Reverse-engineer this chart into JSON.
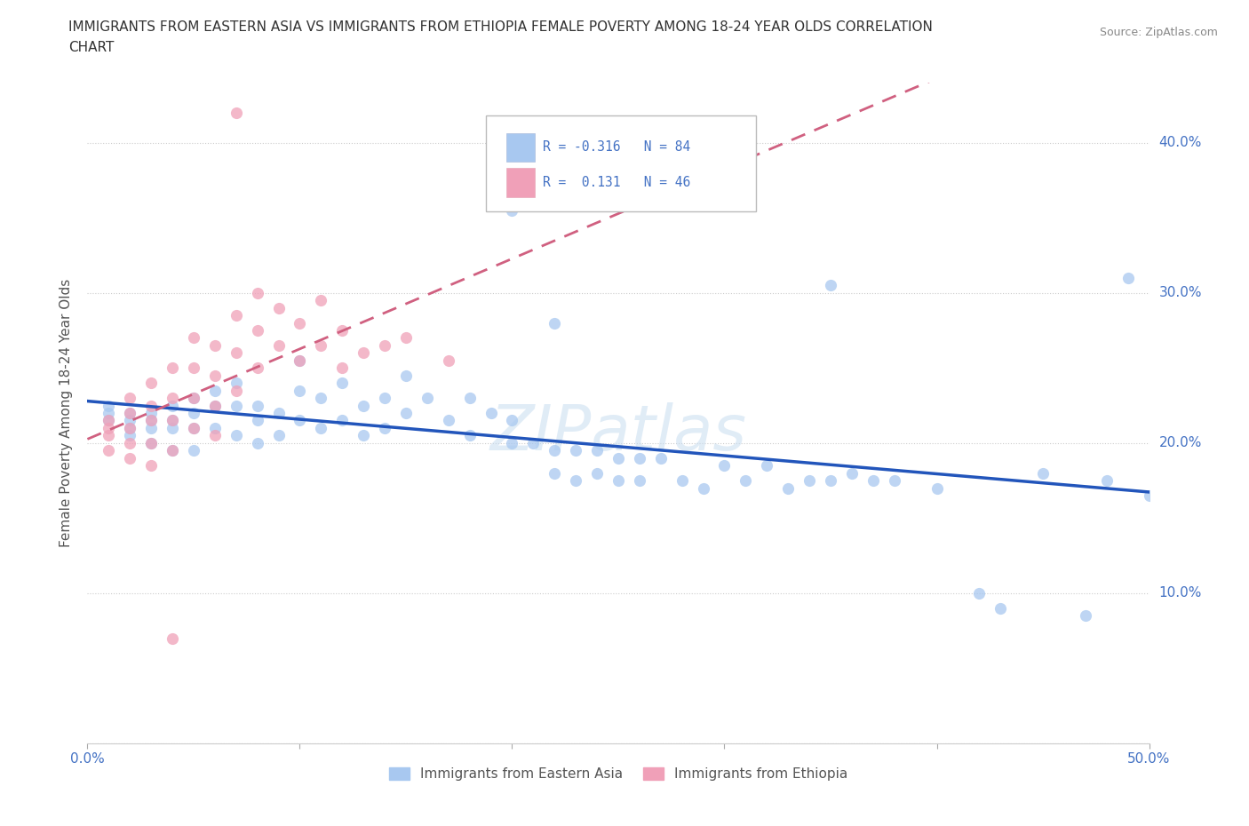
{
  "title_line1": "IMMIGRANTS FROM EASTERN ASIA VS IMMIGRANTS FROM ETHIOPIA FEMALE POVERTY AMONG 18-24 YEAR OLDS CORRELATION",
  "title_line2": "CHART",
  "source": "Source: ZipAtlas.com",
  "ylabel": "Female Poverty Among 18-24 Year Olds",
  "xlim": [
    0.0,
    0.5
  ],
  "ylim": [
    0.0,
    0.44
  ],
  "color_ea": "#a8c8f0",
  "color_et": "#f0a0b8",
  "line_color_ea": "#2255bb",
  "line_color_et": "#d06080",
  "R_ea": -0.316,
  "N_ea": 84,
  "R_et": 0.131,
  "N_et": 46,
  "ea_x": [
    0.01,
    0.01,
    0.01,
    0.02,
    0.02,
    0.02,
    0.02,
    0.03,
    0.03,
    0.03,
    0.03,
    0.04,
    0.04,
    0.04,
    0.04,
    0.05,
    0.05,
    0.05,
    0.05,
    0.06,
    0.06,
    0.06,
    0.07,
    0.07,
    0.07,
    0.08,
    0.08,
    0.08,
    0.09,
    0.09,
    0.1,
    0.1,
    0.1,
    0.11,
    0.11,
    0.12,
    0.12,
    0.13,
    0.13,
    0.14,
    0.14,
    0.15,
    0.15,
    0.16,
    0.17,
    0.18,
    0.18,
    0.19,
    0.2,
    0.2,
    0.21,
    0.22,
    0.22,
    0.23,
    0.23,
    0.24,
    0.24,
    0.25,
    0.25,
    0.26,
    0.26,
    0.27,
    0.28,
    0.29,
    0.3,
    0.31,
    0.32,
    0.33,
    0.34,
    0.35,
    0.36,
    0.37,
    0.38,
    0.4,
    0.42,
    0.43,
    0.45,
    0.47,
    0.48,
    0.5,
    0.2,
    0.22,
    0.35,
    0.49
  ],
  "ea_y": [
    0.215,
    0.22,
    0.225,
    0.215,
    0.22,
    0.21,
    0.205,
    0.22,
    0.215,
    0.21,
    0.2,
    0.225,
    0.215,
    0.21,
    0.195,
    0.23,
    0.22,
    0.21,
    0.195,
    0.235,
    0.225,
    0.21,
    0.24,
    0.225,
    0.205,
    0.225,
    0.215,
    0.2,
    0.22,
    0.205,
    0.255,
    0.235,
    0.215,
    0.23,
    0.21,
    0.24,
    0.215,
    0.225,
    0.205,
    0.23,
    0.21,
    0.245,
    0.22,
    0.23,
    0.215,
    0.23,
    0.205,
    0.22,
    0.215,
    0.2,
    0.2,
    0.195,
    0.18,
    0.195,
    0.175,
    0.195,
    0.18,
    0.19,
    0.175,
    0.19,
    0.175,
    0.19,
    0.175,
    0.17,
    0.185,
    0.175,
    0.185,
    0.17,
    0.175,
    0.175,
    0.18,
    0.175,
    0.175,
    0.17,
    0.1,
    0.09,
    0.18,
    0.085,
    0.175,
    0.165,
    0.355,
    0.28,
    0.305,
    0.31
  ],
  "et_x": [
    0.01,
    0.01,
    0.01,
    0.01,
    0.02,
    0.02,
    0.02,
    0.02,
    0.02,
    0.03,
    0.03,
    0.03,
    0.03,
    0.03,
    0.04,
    0.04,
    0.04,
    0.04,
    0.05,
    0.05,
    0.05,
    0.05,
    0.06,
    0.06,
    0.06,
    0.06,
    0.07,
    0.07,
    0.07,
    0.08,
    0.08,
    0.08,
    0.09,
    0.09,
    0.1,
    0.1,
    0.11,
    0.11,
    0.12,
    0.12,
    0.13,
    0.14,
    0.15,
    0.17,
    0.07,
    0.04
  ],
  "et_y": [
    0.215,
    0.21,
    0.205,
    0.195,
    0.23,
    0.22,
    0.21,
    0.2,
    0.19,
    0.24,
    0.225,
    0.215,
    0.2,
    0.185,
    0.25,
    0.23,
    0.215,
    0.195,
    0.27,
    0.25,
    0.23,
    0.21,
    0.265,
    0.245,
    0.225,
    0.205,
    0.285,
    0.26,
    0.235,
    0.3,
    0.275,
    0.25,
    0.29,
    0.265,
    0.28,
    0.255,
    0.295,
    0.265,
    0.275,
    0.25,
    0.26,
    0.265,
    0.27,
    0.255,
    0.42,
    0.07
  ]
}
